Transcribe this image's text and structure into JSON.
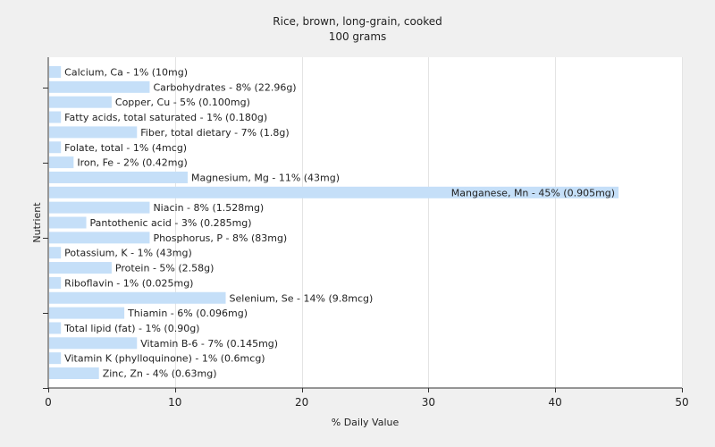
{
  "chart_data": {
    "type": "bar",
    "orientation": "horizontal",
    "title": "Rice, brown, long-grain, cooked",
    "subtitle": "100 grams",
    "xlabel": "% Daily Value",
    "ylabel": "Nutrient",
    "xlim": [
      0,
      50
    ],
    "xticks": [
      0,
      10,
      20,
      30,
      40,
      50
    ],
    "grid": true,
    "bar_color": "#c5dff8",
    "categories": [
      "Calcium, Ca - 1% (10mg)",
      "Carbohydrates - 8% (22.96g)",
      "Copper, Cu - 5% (0.100mg)",
      "Fatty acids, total saturated - 1% (0.180g)",
      "Fiber, total dietary - 7% (1.8g)",
      "Folate, total - 1% (4mcg)",
      "Iron, Fe - 2% (0.42mg)",
      "Magnesium, Mg - 11% (43mg)",
      "Manganese, Mn - 45% (0.905mg)",
      "Niacin - 8% (1.528mg)",
      "Pantothenic acid - 3% (0.285mg)",
      "Phosphorus, P - 8% (83mg)",
      "Potassium, K - 1% (43mg)",
      "Protein - 5% (2.58g)",
      "Riboflavin - 1% (0.025mg)",
      "Selenium, Se - 14% (9.8mcg)",
      "Thiamin - 6% (0.096mg)",
      "Total lipid (fat) - 1% (0.90g)",
      "Vitamin B-6 - 7% (0.145mg)",
      "Vitamin K (phylloquinone) - 1% (0.6mcg)",
      "Zinc, Zn - 4% (0.63mg)"
    ],
    "values": [
      1,
      8,
      5,
      1,
      7,
      1,
      2,
      11,
      45,
      8,
      3,
      8,
      1,
      5,
      1,
      14,
      6,
      1,
      7,
      1,
      4
    ]
  }
}
